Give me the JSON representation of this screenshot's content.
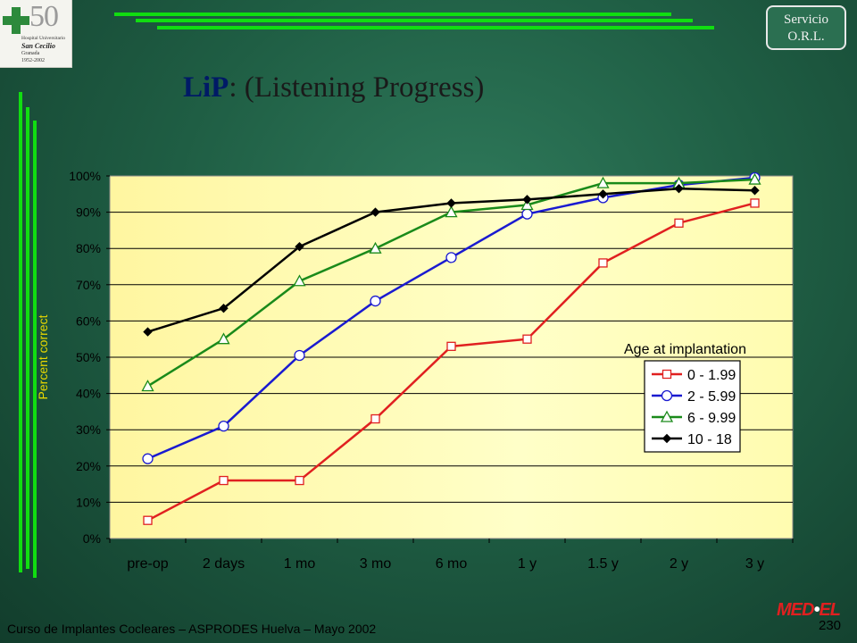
{
  "logo": {
    "number": "50",
    "line1": "Hospital Universitario",
    "line2": "San Cecilio",
    "line3": "Granada",
    "line4": "1952-2002"
  },
  "badge": {
    "line1": "Servicio",
    "line2": "O.R.L."
  },
  "title": {
    "bold": "LiP",
    "rest": ": (Listening Progress)"
  },
  "footer": "Curso de Implantes Cocleares – ASPRODES Huelva – Mayo 2002",
  "page_number": "230",
  "brand": {
    "left": "MED",
    "right": "EL"
  },
  "colors": {
    "background": "#1f5e44",
    "accent_lines": "#11dd11",
    "plot_bg": "#fffca8",
    "series": [
      "#e02020",
      "#1a1ad0",
      "#1a8a1a",
      "#000000"
    ]
  },
  "chart_data": {
    "type": "line",
    "title": "",
    "xlabel": "",
    "ylabel": "Percent correct",
    "ylim": [
      0,
      100
    ],
    "yticks": [
      "0%",
      "10%",
      "20%",
      "30%",
      "40%",
      "50%",
      "60%",
      "70%",
      "80%",
      "90%",
      "100%"
    ],
    "grid": "horizontal",
    "categories": [
      "pre-op",
      "2 days",
      "1 mo",
      "3 mo",
      "6 mo",
      "1 y",
      "1.5 y",
      "2 y",
      "3 y"
    ],
    "legend": {
      "title": "Age at implantation",
      "position": "right-middle"
    },
    "series": [
      {
        "name": "0 - 1.99",
        "marker": "square",
        "color": "#e02020",
        "values": [
          5,
          16,
          16,
          33,
          53,
          55,
          76,
          87,
          92.5
        ]
      },
      {
        "name": "2 - 5.99",
        "marker": "circle",
        "color": "#1a1ad0",
        "values": [
          22,
          31,
          50.5,
          65.5,
          77.5,
          89.5,
          94,
          97.5,
          99.5
        ]
      },
      {
        "name": "6 - 9.99",
        "marker": "triangle",
        "color": "#1a8a1a",
        "values": [
          42,
          55,
          71,
          80,
          90,
          92,
          98,
          98,
          99
        ]
      },
      {
        "name": "10 - 18",
        "marker": "diamond",
        "color": "#000000",
        "values": [
          57,
          63.5,
          80.5,
          90,
          92.5,
          93.5,
          95,
          96.5,
          96
        ]
      }
    ]
  }
}
